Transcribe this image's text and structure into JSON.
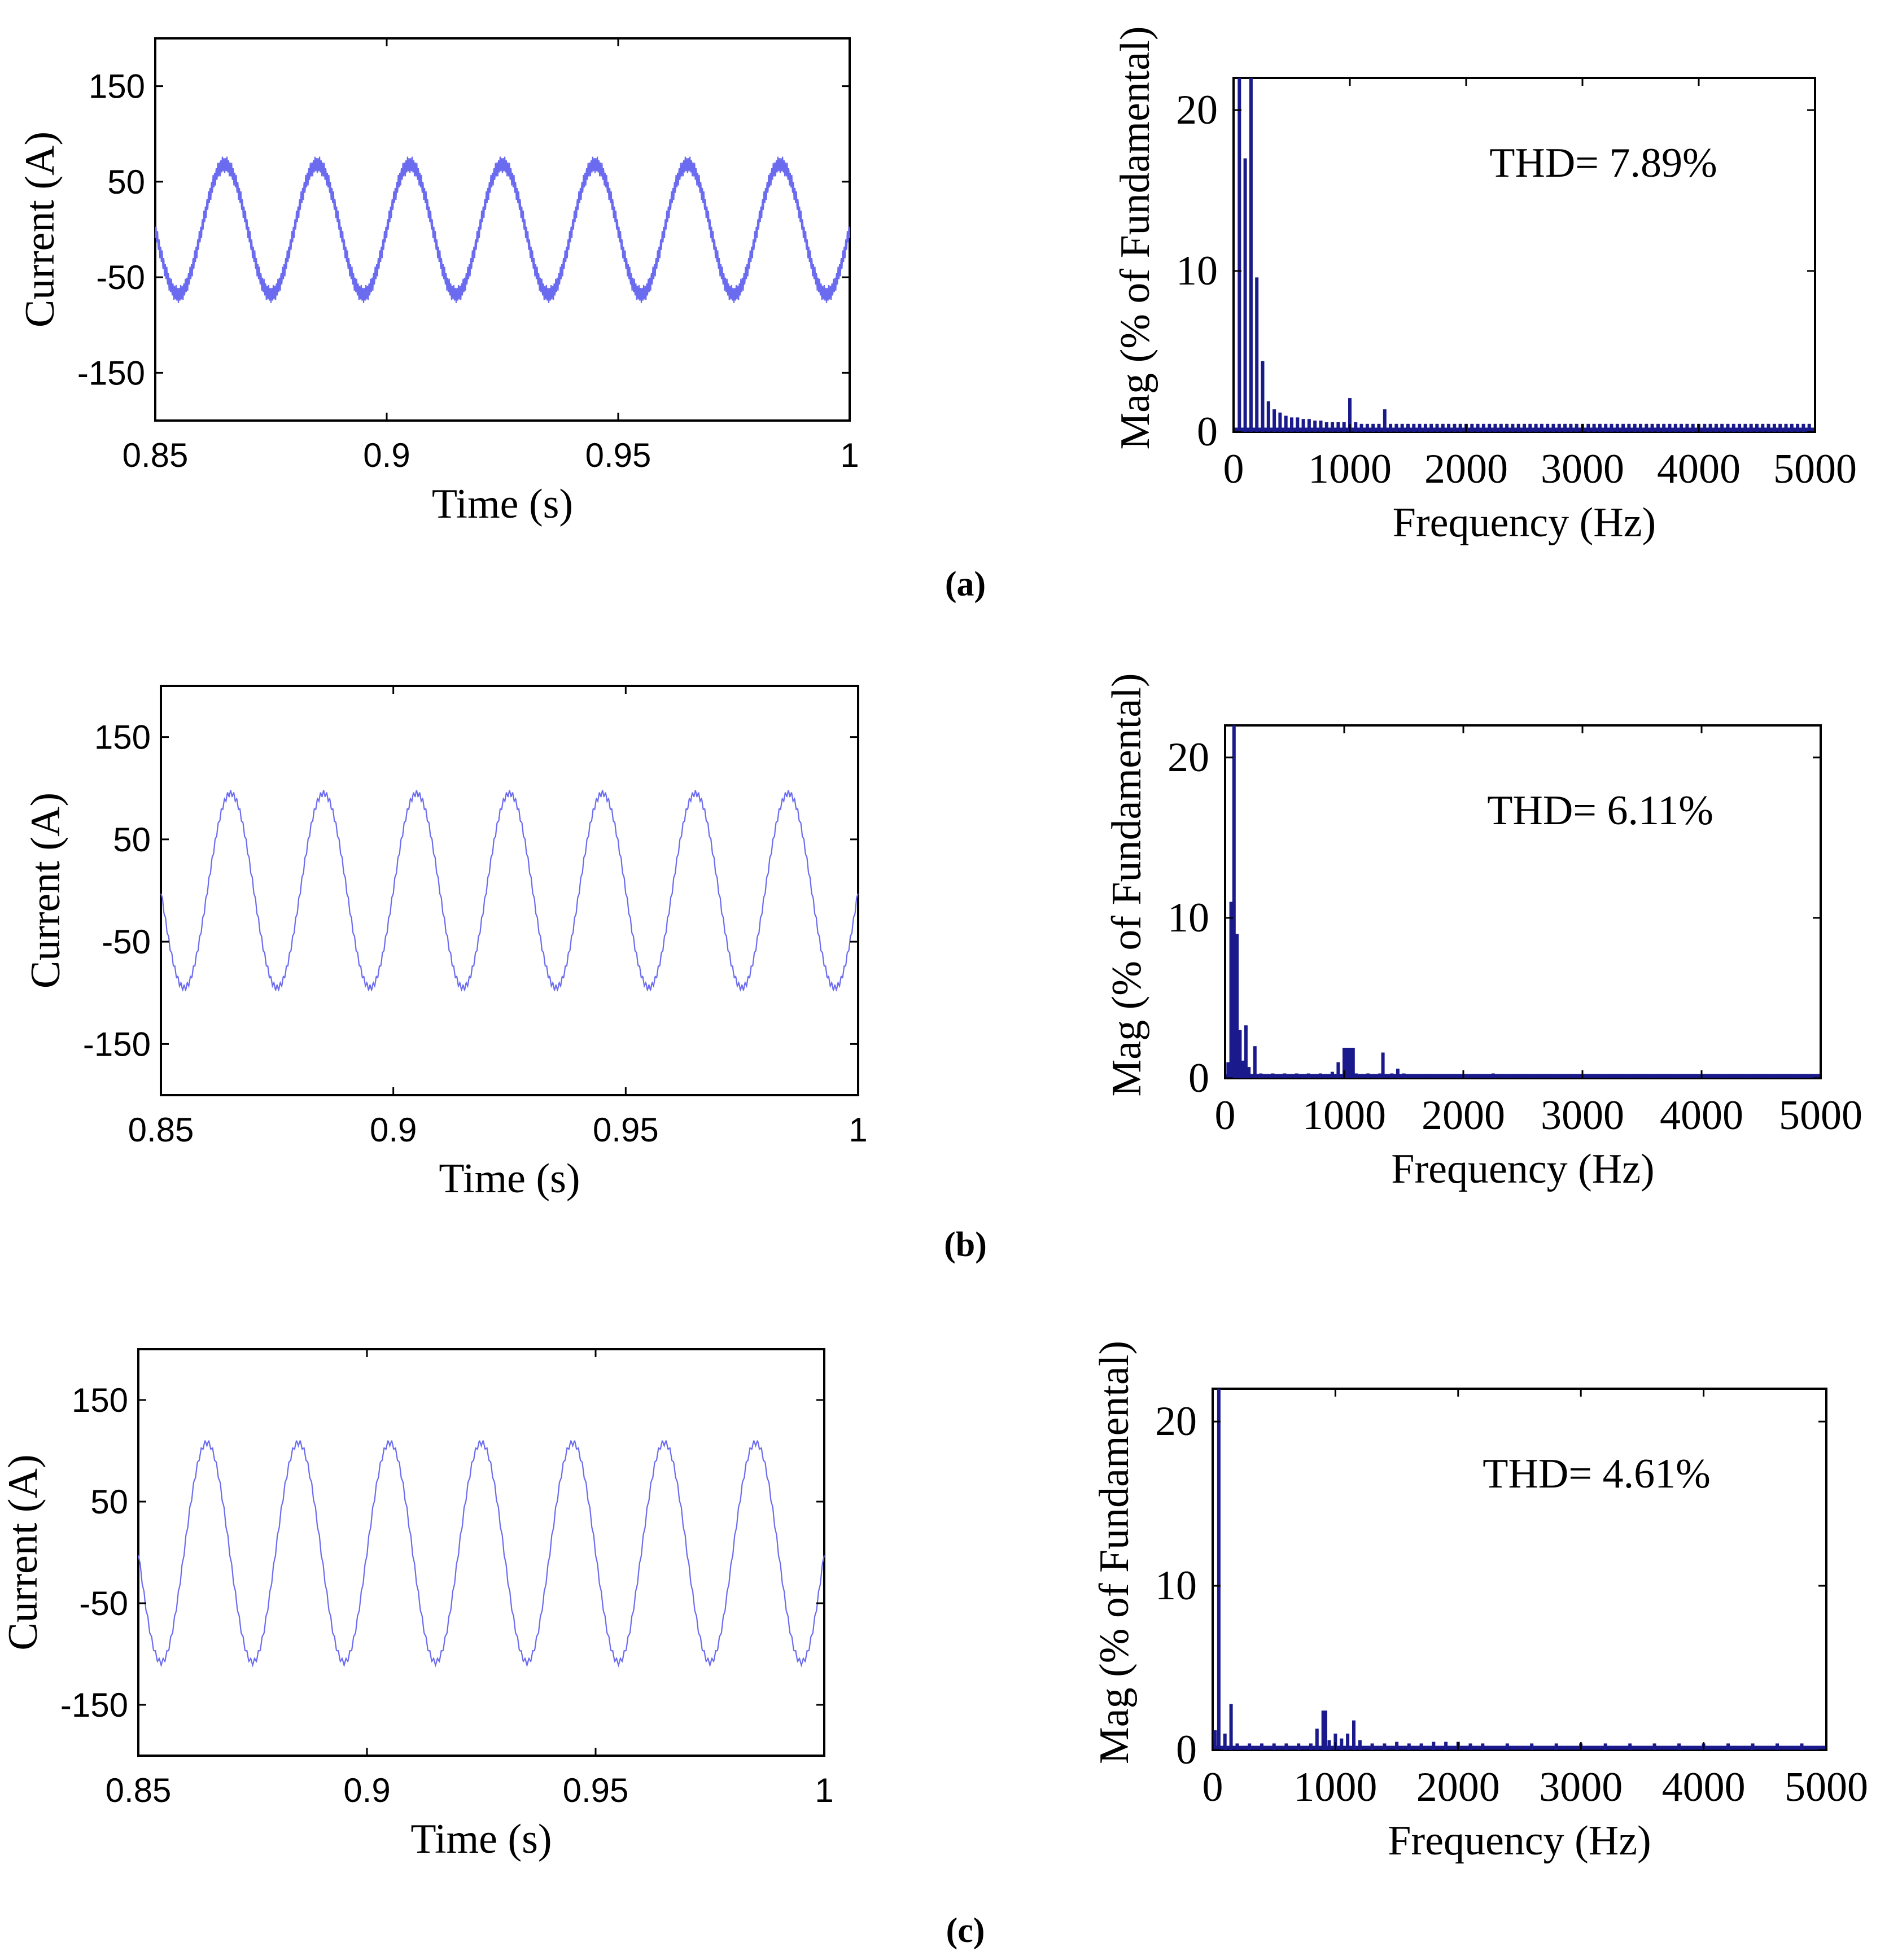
{
  "chart_data": [
    {
      "panel": "(a)",
      "time": {
        "type": "line",
        "xlabel": "Time (s)",
        "ylabel": "Current (A)",
        "xlim": [
          0.85,
          1.0
        ],
        "ylim": [
          -200,
          200
        ],
        "xticks": [
          0.85,
          0.9,
          0.95,
          1
        ],
        "xtick_labels": [
          "0.85",
          "0.9",
          "0.95",
          "1"
        ],
        "yticks": [
          150,
          50,
          -50,
          -150
        ],
        "ytick_labels": [
          "150",
          "50",
          "-50",
          "-150"
        ],
        "series": [
          {
            "name": "current",
            "frequency_hz": 50,
            "offset": 0,
            "amplitude": 68,
            "ripple": 9,
            "ripple_freq_hz": 3000,
            "color": "#6b6bf0"
          }
        ]
      },
      "spectrum": {
        "type": "bar",
        "xlabel": "Frequency (Hz)",
        "ylabel": "Mag (% of Fundamental)",
        "xlim": [
          0,
          5000
        ],
        "ylim": [
          0,
          22
        ],
        "xticks": [
          0,
          1000,
          2000,
          3000,
          4000,
          5000
        ],
        "xtick_labels": [
          "0",
          "1000",
          "2000",
          "3000",
          "4000",
          "5000"
        ],
        "yticks": [
          0,
          10,
          20
        ],
        "ytick_labels": [
          "0",
          "10",
          "20"
        ],
        "annotation": "THD= 7.89%",
        "color": "#1a1a8c",
        "harmonics_freq": [
          50,
          100,
          150,
          200,
          250,
          300,
          350,
          400,
          450,
          500,
          550,
          600,
          650,
          700,
          750,
          800,
          850,
          900,
          950,
          1000,
          1050,
          1100,
          1150,
          1200,
          1250,
          1300,
          1350,
          1400,
          1450,
          1500,
          1550,
          1600,
          1650,
          1700,
          1750,
          1800,
          1850,
          1900,
          1950,
          2000,
          2050,
          2100,
          2150,
          2200,
          2250,
          2300,
          2350,
          2400,
          2450,
          2500,
          2550,
          2600,
          2650,
          2700,
          2750,
          2800,
          2850,
          2900,
          2950,
          3000,
          3050,
          3100,
          3150,
          3200,
          3250,
          3300,
          3350,
          3400,
          3450,
          3500,
          3550,
          3600,
          3650,
          3700,
          3750,
          3800,
          3850,
          3900,
          3950,
          4000,
          4050,
          4100,
          4150,
          4200,
          4250,
          4300,
          4350,
          4400,
          4450,
          4500,
          4550,
          4600,
          4650,
          4700,
          4750,
          4800,
          4850,
          4900,
          4950
        ],
        "harmonics_mag": [
          22,
          17,
          22,
          9.6,
          4.4,
          1.9,
          1.4,
          1.2,
          1.0,
          0.9,
          0.9,
          0.8,
          0.8,
          0.7,
          0.7,
          0.6,
          0.6,
          0.6,
          0.6,
          2.1,
          0.6,
          0.5,
          0.5,
          0.5,
          0.5,
          1.4,
          0.5,
          0.5,
          0.5,
          0.5,
          0.5,
          0.5,
          0.5,
          0.5,
          0.5,
          0.5,
          0.5,
          0.5,
          0.5,
          0.5,
          0.5,
          0.5,
          0.5,
          0.5,
          0.5,
          0.5,
          0.5,
          0.5,
          0.5,
          0.5,
          0.5,
          0.5,
          0.5,
          0.5,
          0.5,
          0.5,
          0.5,
          0.5,
          0.5,
          0.5,
          0.5,
          0.5,
          0.5,
          0.5,
          0.5,
          0.5,
          0.5,
          0.5,
          0.5,
          0.5,
          0.5,
          0.5,
          0.5,
          0.5,
          0.5,
          0.5,
          0.5,
          0.5,
          0.5,
          0.5,
          0.5,
          0.5,
          0.5,
          0.5,
          0.5,
          0.5,
          0.5,
          0.5,
          0.5,
          0.5,
          0.5,
          0.5,
          0.5,
          0.5,
          0.5,
          0.5,
          0.5,
          0.5,
          0.5
        ]
      }
    },
    {
      "panel": "(b)",
      "time": {
        "type": "line",
        "xlabel": "Time (s)",
        "ylabel": "Current (A)",
        "xlim": [
          0.85,
          1.0
        ],
        "ylim": [
          -200,
          200
        ],
        "xticks": [
          0.85,
          0.9,
          0.95,
          1
        ],
        "xtick_labels": [
          "0.85",
          "0.9",
          "0.95",
          "1"
        ],
        "yticks": [
          150,
          50,
          -50,
          -150
        ],
        "ytick_labels": [
          "150",
          "50",
          "-50",
          "-150"
        ],
        "series": [
          {
            "name": "current",
            "frequency_hz": 50,
            "offset": 0,
            "amplitude": 95,
            "ripple": 3,
            "ripple_freq_hz": 1500,
            "color": "#6b6bf0"
          }
        ]
      },
      "spectrum": {
        "type": "bar",
        "xlabel": "Frequency (Hz)",
        "ylabel": "Mag (% of Fundamental)",
        "xlim": [
          0,
          5000
        ],
        "ylim": [
          0,
          22
        ],
        "xticks": [
          0,
          1000,
          2000,
          3000,
          4000,
          5000
        ],
        "xtick_labels": [
          "0",
          "1000",
          "2000",
          "3000",
          "4000",
          "5000"
        ],
        "yticks": [
          0,
          10,
          20
        ],
        "ytick_labels": [
          "0",
          "10",
          "20"
        ],
        "annotation": "THD= 6.11%",
        "color": "#1a1a8c",
        "harmonics_freq": [
          25,
          50,
          75,
          100,
          125,
          150,
          175,
          200,
          250,
          300,
          400,
          500,
          600,
          700,
          800,
          900,
          950,
          1000,
          1025,
          1050,
          1075,
          1100,
          1200,
          1300,
          1325,
          1400,
          1450,
          1500,
          1600,
          1800,
          2000,
          2200,
          2250,
          2400,
          2600,
          2800,
          3000,
          3200,
          3400,
          3600,
          3800,
          4000,
          4200,
          4400,
          4600,
          4800
        ],
        "harmonics_mag": [
          1.0,
          11,
          22,
          9.0,
          3.0,
          1.1,
          3.3,
          0.7,
          2.0,
          0.3,
          0.3,
          0.3,
          0.3,
          0.3,
          0.3,
          0.4,
          1.0,
          1.9,
          1.9,
          1.9,
          1.9,
          0.3,
          0.3,
          0.3,
          1.6,
          0.3,
          0.6,
          0.3,
          0.2,
          0.2,
          0.2,
          0.2,
          0.3,
          0.2,
          0.2,
          0.2,
          0.2,
          0.2,
          0.2,
          0.2,
          0.2,
          0.2,
          0.2,
          0.2,
          0.2,
          0.2
        ]
      }
    },
    {
      "panel": "(c)",
      "time": {
        "type": "line",
        "xlabel": "Time (s)",
        "ylabel": "Current (A)",
        "xlim": [
          0.85,
          1.0
        ],
        "ylim": [
          -200,
          200
        ],
        "xticks": [
          0.85,
          0.9,
          0.95,
          1
        ],
        "xtick_labels": [
          "0.85",
          "0.9",
          "0.95",
          "1"
        ],
        "yticks": [
          150,
          50,
          -50,
          -150
        ],
        "ytick_labels": [
          "150",
          "50",
          "-50",
          "-150"
        ],
        "series": [
          {
            "name": "current",
            "frequency_hz": 50,
            "offset": 0,
            "amplitude": 108,
            "ripple": 3,
            "ripple_freq_hz": 1200,
            "color": "#6b6bf0"
          }
        ]
      },
      "spectrum": {
        "type": "bar",
        "xlabel": "Frequency (Hz)",
        "ylabel": "Mag (% of Fundamental)",
        "xlim": [
          0,
          5000
        ],
        "ylim": [
          0,
          22
        ],
        "xticks": [
          0,
          1000,
          2000,
          3000,
          4000,
          5000
        ],
        "xtick_labels": [
          "0",
          "1000",
          "2000",
          "3000",
          "4000",
          "5000"
        ],
        "yticks": [
          0,
          10,
          20
        ],
        "ytick_labels": [
          "0",
          "10",
          "20"
        ],
        "annotation": "THD= 4.61%",
        "color": "#1a1a8c",
        "harmonics_freq": [
          20,
          50,
          100,
          150,
          200,
          300,
          400,
          500,
          600,
          700,
          800,
          850,
          900,
          920,
          950,
          1000,
          1050,
          1100,
          1150,
          1200,
          1300,
          1400,
          1500,
          1600,
          1700,
          1800,
          1900,
          2000,
          2100,
          2200,
          2400,
          2600,
          2800,
          3000,
          3200,
          3400,
          3600,
          3800,
          4000,
          4200,
          4400,
          4600,
          4800
        ],
        "harmonics_mag": [
          1.2,
          22,
          1.0,
          2.8,
          0.4,
          0.4,
          0.4,
          0.4,
          0.4,
          0.4,
          0.4,
          1.3,
          2.4,
          2.4,
          0.6,
          1.0,
          0.7,
          1.0,
          1.8,
          0.6,
          0.4,
          0.4,
          0.5,
          0.4,
          0.4,
          0.5,
          0.5,
          0.5,
          0.4,
          0.4,
          0.4,
          0.4,
          0.4,
          0.4,
          0.4,
          0.4,
          0.4,
          0.4,
          0.4,
          0.4,
          0.4,
          0.4,
          0.4
        ]
      }
    }
  ]
}
